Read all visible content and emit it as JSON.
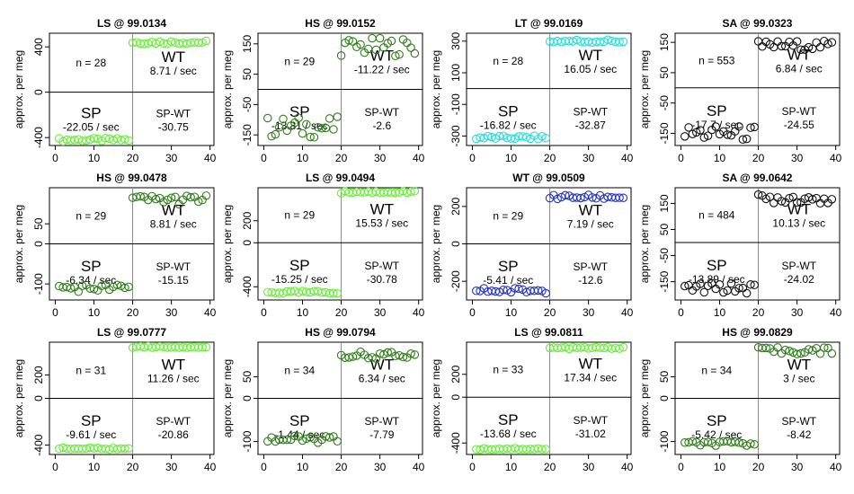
{
  "y_axis_label": "approx. per meg",
  "chart_data": [
    {
      "type": "scatter",
      "title": "LS @ 99.0134",
      "ylim": [
        -470,
        520
      ],
      "yticks": [
        -400,
        0,
        400
      ],
      "xlim": [
        -1.5,
        41
      ],
      "xticks": [
        0,
        10,
        20,
        30,
        40
      ],
      "n_label": "n = 28",
      "wt_label": "WT",
      "wt_rate": "8.71 / sec",
      "sp_label": "SP",
      "sp_rate": "-22.05 / sec",
      "diff_label": "SP-WT",
      "diff_value": "-30.75",
      "color": "#66ee33",
      "sp": {
        "start": 1,
        "end": 19,
        "level": -420,
        "jitter": 15
      },
      "wt": {
        "start": 20,
        "end": 39,
        "level": 440,
        "jitter": 15
      }
    },
    {
      "type": "scatter",
      "title": "HS @ 99.0152",
      "ylim": [
        -185,
        185
      ],
      "yticks": [
        -150,
        -50,
        50,
        150
      ],
      "xlim": [
        -1.5,
        41
      ],
      "xticks": [
        0,
        10,
        20,
        30,
        40
      ],
      "n_label": "n = 29",
      "wt_label": "WT",
      "wt_rate": "-11.22 / sec",
      "sp_label": "SP",
      "sp_rate": "-13.81 / sec",
      "diff_label": "SP-WT",
      "diff_value": "-2.6",
      "color": "#2e7d1a",
      "sp": {
        "start": 1,
        "end": 19,
        "level": -125,
        "jitter": 35
      },
      "wt": {
        "start": 20,
        "end": 39,
        "level": 140,
        "jitter": 30
      }
    },
    {
      "type": "scatter",
      "title": "LT @ 99.0169",
      "ylim": [
        -360,
        350
      ],
      "yticks": [
        -300,
        -100,
        100,
        300
      ],
      "xlim": [
        -1.5,
        41
      ],
      "xticks": [
        0,
        10,
        20,
        30,
        40
      ],
      "n_label": "n = 28",
      "wt_label": "WT",
      "wt_rate": "16.05 / sec",
      "sp_label": "SP",
      "sp_rate": "-16.82 / sec",
      "diff_label": "SP-WT",
      "diff_value": "-32.87",
      "color": "#22dddd",
      "sp": {
        "start": 1,
        "end": 19,
        "level": -310,
        "jitter": 12
      },
      "wt": {
        "start": 20,
        "end": 39,
        "level": 300,
        "jitter": 12
      }
    },
    {
      "type": "scatter",
      "title": "SA @ 99.0323",
      "ylim": [
        -190,
        180
      ],
      "yticks": [
        -150,
        -50,
        50,
        150
      ],
      "xlim": [
        -1.5,
        41
      ],
      "xticks": [
        0,
        10,
        20,
        30,
        40
      ],
      "n_label": "n = 553",
      "wt_label": "WT",
      "wt_rate": "6.84 / sec",
      "sp_label": "SP",
      "sp_rate": "-17.7 / sec",
      "diff_label": "SP-WT",
      "diff_value": "-24.55",
      "color": "#111111",
      "sp": {
        "start": 1,
        "end": 19,
        "level": -150,
        "jitter": 25
      },
      "wt": {
        "start": 20,
        "end": 39,
        "level": 140,
        "jitter": 15
      }
    },
    {
      "type": "scatter",
      "title": "HS @ 99.0478",
      "ylim": [
        -140,
        140
      ],
      "yticks": [
        -100,
        0,
        50
      ],
      "xlim": [
        -1.5,
        41
      ],
      "xticks": [
        0,
        10,
        20,
        30,
        40
      ],
      "n_label": "n = 29",
      "wt_label": "WT",
      "wt_rate": "8.81 / sec",
      "sp_label": "SP",
      "sp_rate": "-6.34 / sec",
      "diff_label": "SP-WT",
      "diff_value": "-15.15",
      "color": "#2e7d1a",
      "sp": {
        "start": 1,
        "end": 19,
        "level": -110,
        "jitter": 10
      },
      "wt": {
        "start": 20,
        "end": 39,
        "level": 110,
        "jitter": 12
      }
    },
    {
      "type": "scatter",
      "title": "LS @ 99.0494",
      "ylim": [
        -520,
        500
      ],
      "yticks": [
        -400,
        0,
        200
      ],
      "xlim": [
        -1.5,
        41
      ],
      "xticks": [
        0,
        10,
        20,
        30,
        40
      ],
      "n_label": "n = 29",
      "wt_label": "WT",
      "wt_rate": "15.53 / sec",
      "sp_label": "SP",
      "sp_rate": "-15.25 / sec",
      "diff_label": "SP-WT",
      "diff_value": "-30.78",
      "color": "#66ee33",
      "sp": {
        "start": 1,
        "end": 19,
        "level": -450,
        "jitter": 12
      },
      "wt": {
        "start": 20,
        "end": 39,
        "level": 460,
        "jitter": 10
      }
    },
    {
      "type": "scatter",
      "title": "WT @ 99.0509",
      "ylim": [
        -300,
        300
      ],
      "yticks": [
        -200,
        0,
        200
      ],
      "xlim": [
        -1.5,
        41
      ],
      "xticks": [
        0,
        10,
        20,
        30,
        40
      ],
      "n_label": "n = 29",
      "wt_label": "WT",
      "wt_rate": "7.19 / sec",
      "sp_label": "SP",
      "sp_rate": "-5.41 / sec",
      "diff_label": "SP-WT",
      "diff_value": "-12.6",
      "color": "#2233cc",
      "sp": {
        "start": 1,
        "end": 19,
        "level": -250,
        "jitter": 15
      },
      "wt": {
        "start": 20,
        "end": 39,
        "level": 250,
        "jitter": 12
      }
    },
    {
      "type": "scatter",
      "title": "SA @ 99.0642",
      "ylim": [
        -220,
        210
      ],
      "yticks": [
        -150,
        -50,
        50,
        150
      ],
      "xlim": [
        -1.5,
        41
      ],
      "xticks": [
        0,
        10,
        20,
        30,
        40
      ],
      "n_label": "n = 484",
      "wt_label": "WT",
      "wt_rate": "10.13 / sec",
      "sp_label": "SP",
      "sp_rate": "-13.89 / sec",
      "diff_label": "SP-WT",
      "diff_value": "-24.02",
      "color": "#111111",
      "sp": {
        "start": 1,
        "end": 19,
        "level": -175,
        "jitter": 20
      },
      "wt": {
        "start": 20,
        "end": 39,
        "level": 170,
        "jitter": 20
      }
    },
    {
      "type": "scatter",
      "title": "LS @ 99.0777",
      "ylim": [
        -480,
        480
      ],
      "yticks": [
        -400,
        0,
        200
      ],
      "xlim": [
        -1.5,
        41
      ],
      "xticks": [
        0,
        10,
        20,
        30,
        40
      ],
      "n_label": "n = 31",
      "wt_label": "WT",
      "wt_rate": "11.26 / sec",
      "sp_label": "SP",
      "sp_rate": "-9.61 / sec",
      "diff_label": "SP-WT",
      "diff_value": "-20.86",
      "color": "#66ee33",
      "sp": {
        "start": 1,
        "end": 19,
        "level": -430,
        "jitter": 8
      },
      "wt": {
        "start": 20,
        "end": 39,
        "level": 440,
        "jitter": 8
      }
    },
    {
      "type": "scatter",
      "title": "HS @ 99.0794",
      "ylim": [
        -130,
        130
      ],
      "yticks": [
        -100,
        0,
        50
      ],
      "xlim": [
        -1.5,
        41
      ],
      "xticks": [
        0,
        10,
        20,
        30,
        40
      ],
      "n_label": "n = 34",
      "wt_label": "WT",
      "wt_rate": "6.34 / sec",
      "sp_label": "SP",
      "sp_rate": "-1.44 / sec",
      "diff_label": "SP-WT",
      "diff_value": "-7.79",
      "color": "#2e7d1a",
      "sp": {
        "start": 1,
        "end": 19,
        "level": -95,
        "jitter": 8
      },
      "wt": {
        "start": 20,
        "end": 39,
        "level": 100,
        "jitter": 8
      }
    },
    {
      "type": "scatter",
      "title": "LS @ 99.0811",
      "ylim": [
        -500,
        480
      ],
      "yticks": [
        -400,
        0,
        200
      ],
      "xlim": [
        -1.5,
        41
      ],
      "xticks": [
        0,
        10,
        20,
        30,
        40
      ],
      "n_label": "n = 33",
      "wt_label": "WT",
      "wt_rate": "17.34 / sec",
      "sp_label": "SP",
      "sp_rate": "-13.68 / sec",
      "diff_label": "SP-WT",
      "diff_value": "-31.02",
      "color": "#66ee33",
      "sp": {
        "start": 1,
        "end": 19,
        "level": -450,
        "jitter": 8
      },
      "wt": {
        "start": 20,
        "end": 39,
        "level": 430,
        "jitter": 8
      }
    },
    {
      "type": "scatter",
      "title": "HS @ 99.0829",
      "ylim": [
        -130,
        130
      ],
      "yticks": [
        -100,
        0,
        50
      ],
      "xlim": [
        -1.5,
        41
      ],
      "xticks": [
        0,
        10,
        20,
        30,
        40
      ],
      "n_label": "n = 34",
      "wt_label": "WT",
      "wt_rate": "3 / sec",
      "sp_label": "SP",
      "sp_rate": "-5.42 / sec",
      "diff_label": "SP-WT",
      "diff_value": "-8.42",
      "color": "#2e7d1a",
      "sp": {
        "start": 1,
        "end": 19,
        "level": -105,
        "jitter": 6
      },
      "wt": {
        "start": 20,
        "end": 39,
        "level": 110,
        "jitter": 8
      }
    }
  ]
}
